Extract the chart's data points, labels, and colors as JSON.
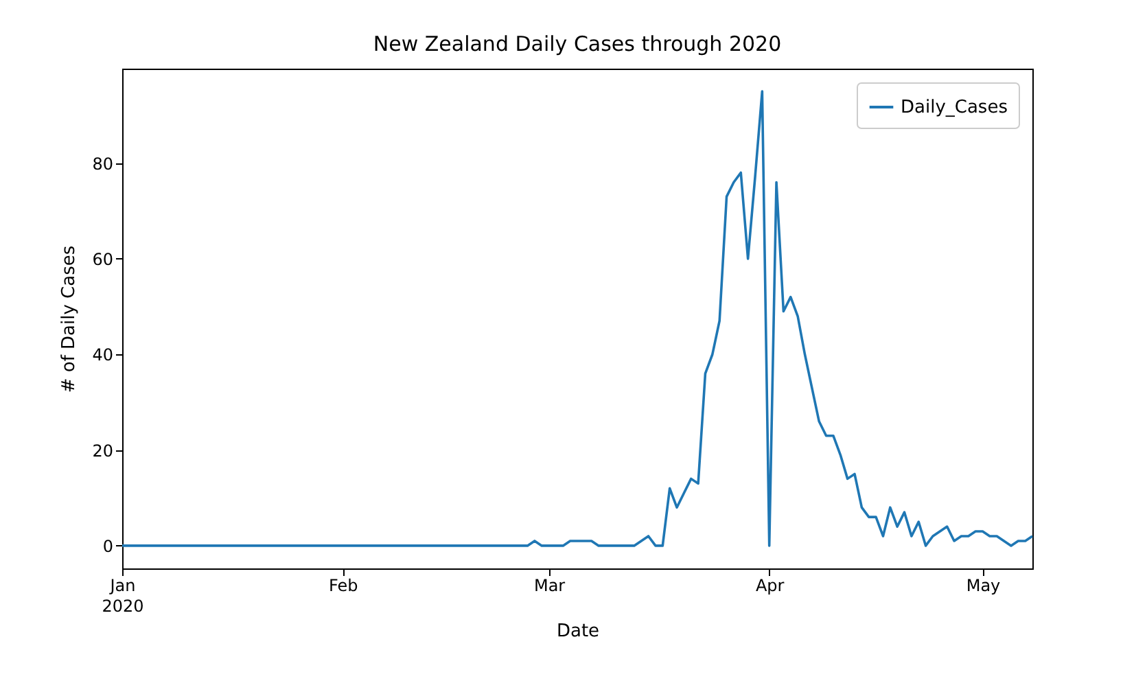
{
  "chart_data": {
    "type": "line",
    "title": "New Zealand Daily Cases through 2020",
    "xlabel": "Date",
    "ylabel": "# of Daily Cases",
    "x": [
      "2020-01-01",
      "2020-02-27",
      "2020-02-28",
      "2020-02-29",
      "2020-03-01",
      "2020-03-02",
      "2020-03-03",
      "2020-03-04",
      "2020-03-05",
      "2020-03-06",
      "2020-03-07",
      "2020-03-08",
      "2020-03-09",
      "2020-03-10",
      "2020-03-11",
      "2020-03-12",
      "2020-03-13",
      "2020-03-14",
      "2020-03-15",
      "2020-03-16",
      "2020-03-17",
      "2020-03-18",
      "2020-03-19",
      "2020-03-20",
      "2020-03-21",
      "2020-03-22",
      "2020-03-23",
      "2020-03-24",
      "2020-03-25",
      "2020-03-26",
      "2020-03-27",
      "2020-03-28",
      "2020-03-29",
      "2020-03-30",
      "2020-03-31",
      "2020-04-01",
      "2020-04-02",
      "2020-04-03",
      "2020-04-04",
      "2020-04-05",
      "2020-04-06",
      "2020-04-07",
      "2020-04-08",
      "2020-04-09",
      "2020-04-10",
      "2020-04-11",
      "2020-04-12",
      "2020-04-13",
      "2020-04-14",
      "2020-04-15",
      "2020-04-16",
      "2020-04-17",
      "2020-04-18",
      "2020-04-19",
      "2020-04-20",
      "2020-04-21",
      "2020-04-22",
      "2020-04-23",
      "2020-04-24",
      "2020-04-25",
      "2020-04-26",
      "2020-04-27",
      "2020-04-28",
      "2020-04-29",
      "2020-04-30",
      "2020-05-01",
      "2020-05-02",
      "2020-05-03",
      "2020-05-04",
      "2020-05-05",
      "2020-05-06",
      "2020-05-07",
      "2020-05-08"
    ],
    "series": [
      {
        "name": "Daily_Cases",
        "color": "#1f77b4",
        "values": [
          0,
          0,
          1,
          0,
          0,
          0,
          0,
          1,
          1,
          1,
          1,
          0,
          0,
          0,
          0,
          0,
          0,
          1,
          2,
          0,
          0,
          12,
          8,
          11,
          14,
          13,
          36,
          40,
          47,
          73,
          76,
          78,
          60,
          77,
          95,
          0,
          76,
          49,
          52,
          48,
          40,
          33,
          26,
          23,
          23,
          19,
          14,
          15,
          8,
          6,
          6,
          2,
          8,
          4,
          7,
          2,
          5,
          0,
          2,
          3,
          4,
          1,
          2,
          2,
          3,
          3,
          2,
          2,
          1,
          0,
          1,
          1,
          2
        ]
      }
    ],
    "xlim": [
      "2020-01-01",
      "2020-05-08"
    ],
    "xticks": [
      {
        "value": "2020-01-01",
        "label": "Jan\n2020"
      },
      {
        "value": "2020-02-01",
        "label": "Feb"
      },
      {
        "value": "2020-03-01",
        "label": "Mar"
      },
      {
        "value": "2020-04-01",
        "label": "Apr"
      },
      {
        "value": "2020-05-01",
        "label": "May"
      }
    ],
    "ylim": [
      -4.75,
      99.75
    ],
    "yticks": [
      0,
      20,
      40,
      60,
      80
    ],
    "legend": "top right",
    "grid": false,
    "line_style": "solid",
    "marker": "none"
  }
}
